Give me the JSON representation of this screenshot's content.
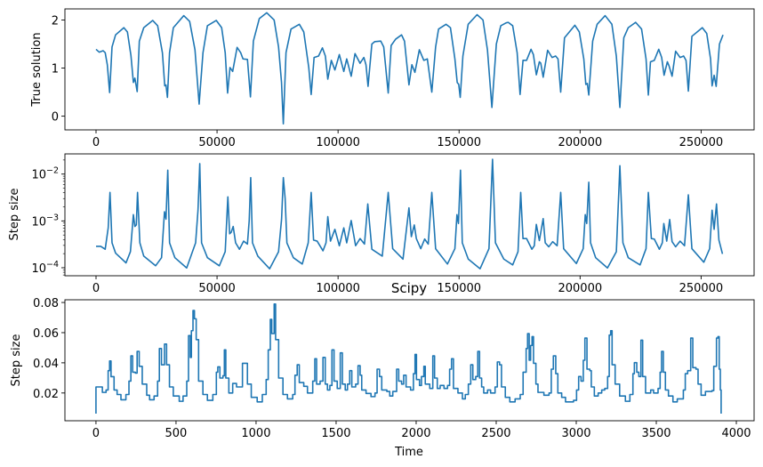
{
  "chart_data": [
    {
      "type": "line",
      "title": "",
      "xlabel": "",
      "ylabel": "True solution",
      "xlim": [
        -12856,
        271900
      ],
      "ylim": [
        -0.285,
        2.23
      ],
      "yscale": "linear",
      "grid": false,
      "color": "#1f77b4",
      "xticks": [
        0,
        50000,
        100000,
        150000,
        200000,
        250000
      ],
      "xtick_labels": [
        "0",
        "50000",
        "100000",
        "150000",
        "200000",
        "250000"
      ],
      "yticks": [
        0,
        1,
        2
      ],
      "ytick_labels": [
        "0",
        "1",
        "2"
      ],
      "x": [
        0,
        1350,
        2940,
        3790,
        4660,
        5620,
        6610,
        8080,
        11500,
        12970,
        14430,
        15430,
        16050,
        17000,
        17890,
        19720,
        23400,
        25460,
        27420,
        28400,
        28900,
        29500,
        30370,
        31950,
        36250,
        38680,
        40880,
        42600,
        44190,
        46020,
        49690,
        51900,
        53370,
        54360,
        55350,
        56450,
        58290,
        59760,
        60730,
        62560,
        63800,
        65010,
        67470,
        70520,
        73580,
        75410,
        76640,
        77380,
        78490,
        80560,
        84000,
        85840,
        87900,
        88890,
        90100,
        91940,
        93530,
        94760,
        95750,
        97220,
        98690,
        100530,
        102360,
        103580,
        105420,
        107010,
        109090,
        110670,
        111530,
        112390,
        113970,
        115190,
        117650,
        118860,
        120730,
        121940,
        123780,
        126240,
        127450,
        129290,
        130510,
        131750,
        133590,
        135420,
        136890,
        138730,
        140310,
        141520,
        144600,
        146430,
        148270,
        149230,
        149860,
        150480,
        151580,
        153760,
        157430,
        159880,
        161720,
        163560,
        165400,
        167240,
        169440,
        170310,
        172150,
        173990,
        175200,
        176420,
        177890,
        179730,
        180710,
        181930,
        183170,
        183760,
        184750,
        186590,
        188420,
        189890,
        190880,
        191980,
        193560,
        197850,
        199690,
        201530,
        202370,
        203000,
        203590,
        205200,
        207040,
        210350,
        213140,
        214970,
        216440,
        218060,
        219900,
        222950,
        225410,
        227250,
        228200,
        229080,
        230660,
        232490,
        233710,
        234700,
        236060,
        236790,
        238000,
        239470,
        241310,
        242780,
        243770,
        244730,
        246200,
        250500,
        252330,
        253910,
        254540,
        255380,
        256230,
        257590,
        259060
      ],
      "y": [
        1.39,
        1.33,
        1.36,
        1.32,
        1.07,
        0.49,
        1.44,
        1.69,
        1.84,
        1.75,
        1.26,
        0.7,
        0.79,
        0.51,
        1.56,
        1.84,
        1.99,
        1.88,
        1.32,
        0.63,
        0.65,
        0.39,
        1.32,
        1.84,
        2.09,
        1.97,
        1.38,
        0.25,
        1.32,
        1.88,
        1.99,
        1.84,
        1.32,
        0.48,
        1.01,
        0.93,
        1.43,
        1.32,
        1.19,
        1.18,
        0.4,
        1.56,
        2.03,
        2.15,
        2.0,
        1.44,
        0.7,
        -0.16,
        1.32,
        1.81,
        1.91,
        1.75,
        1.01,
        0.45,
        1.22,
        1.25,
        1.42,
        1.25,
        0.77,
        1.16,
        0.96,
        1.28,
        0.93,
        1.19,
        0.83,
        1.3,
        1.1,
        1.22,
        1.07,
        0.62,
        1.5,
        1.55,
        1.56,
        1.44,
        0.48,
        1.47,
        1.6,
        1.69,
        1.56,
        0.65,
        1.07,
        0.91,
        1.38,
        1.16,
        1.19,
        0.5,
        1.44,
        1.81,
        1.91,
        1.84,
        1.19,
        0.7,
        0.66,
        0.39,
        1.25,
        1.91,
        2.11,
        2.0,
        1.38,
        0.18,
        1.5,
        1.88,
        1.94,
        1.95,
        1.88,
        1.32,
        0.45,
        1.16,
        1.16,
        1.39,
        1.28,
        0.86,
        1.13,
        1.1,
        0.81,
        1.37,
        1.22,
        1.25,
        1.19,
        0.5,
        1.63,
        1.89,
        1.75,
        1.19,
        0.66,
        0.68,
        0.44,
        1.56,
        1.91,
        2.09,
        1.91,
        1.25,
        0.18,
        1.63,
        1.84,
        1.95,
        1.81,
        1.19,
        0.44,
        1.13,
        1.16,
        1.39,
        1.22,
        0.85,
        1.13,
        1.04,
        0.83,
        1.35,
        1.22,
        1.25,
        1.16,
        0.52,
        1.66,
        1.84,
        1.72,
        1.19,
        0.63,
        0.85,
        0.62,
        1.5,
        1.69
      ]
    },
    {
      "type": "line",
      "title": "",
      "xlabel": "",
      "ylabel": "Step size",
      "xlim": [
        -12856,
        271900
      ],
      "ylim": [
        6.74e-05,
        0.027
      ],
      "yscale": "log",
      "grid": false,
      "color": "#1f77b4",
      "xticks": [
        0,
        50000,
        100000,
        150000,
        200000,
        250000
      ],
      "xtick_labels": [
        "0",
        "50000",
        "100000",
        "150000",
        "200000",
        "250000"
      ],
      "yticks": [
        0.0001,
        0.001,
        0.01
      ],
      "ytick_labels": [
        {
          "base": "10",
          "exp": "−4"
        },
        {
          "base": "10",
          "exp": "−3"
        },
        {
          "base": "10",
          "exp": "−2"
        }
      ],
      "x": [
        0,
        1950,
        3780,
        5030,
        5770,
        6610,
        8080,
        12380,
        14210,
        15430,
        16050,
        16640,
        17150,
        18110,
        19720,
        24610,
        27070,
        28280,
        28910,
        29640,
        30380,
        32580,
        37460,
        41140,
        42130,
        42860,
        43600,
        46020,
        50940,
        53370,
        54470,
        55210,
        55830,
        56670,
        57670,
        59250,
        60970,
        62550,
        63290,
        63910,
        64650,
        66850,
        71730,
        75410,
        76660,
        77390,
        78130,
        78860,
        81540,
        85210,
        87670,
        88890,
        89880,
        91350,
        93770,
        95020,
        95760,
        96860,
        98690,
        100530,
        102360,
        103580,
        105420,
        107250,
        109090,
        110920,
        112280,
        113970,
        118270,
        120730,
        122570,
        126830,
        129290,
        130280,
        131490,
        132340,
        134170,
        135790,
        137260,
        138730,
        140310,
        145190,
        148270,
        149120,
        149750,
        150590,
        151330,
        153790,
        158670,
        162350,
        163820,
        165030,
        168480,
        172150,
        174350,
        175460,
        176410,
        177880,
        180090,
        181080,
        181920,
        183170,
        184750,
        185600,
        187070,
        188680,
        190520,
        191990,
        193200,
        198450,
        201280,
        202130,
        202750,
        203590,
        204330,
        206420,
        211310,
        214980,
        216440,
        217700,
        219900,
        224780,
        227250,
        228200,
        229450,
        230660,
        232760,
        233970,
        234590,
        235800,
        237020,
        238010,
        239480,
        241310,
        243150,
        244730,
        246200,
        251120,
        253540,
        254540,
        255380,
        256370,
        257360,
        258830
      ],
      "y": [
        0.000286,
        0.000286,
        0.000248,
        0.00071,
        0.00406,
        0.00034,
        0.000205,
        0.000127,
        0.00022,
        0.00136,
        0.00076,
        0.00082,
        0.00406,
        0.00034,
        0.000177,
        0.00011,
        0.000164,
        0.00157,
        0.00109,
        0.0121,
        0.00034,
        0.000164,
        9.9e-05,
        0.00034,
        0.00169,
        0.0167,
        0.00034,
        0.000164,
        0.00011,
        0.00022,
        0.00327,
        0.00053,
        0.00057,
        0.00076,
        0.00034,
        0.000248,
        0.00037,
        0.00032,
        0.00102,
        0.0084,
        0.00034,
        0.000177,
        9.5e-05,
        0.00022,
        0.00109,
        0.0084,
        0.00303,
        0.00034,
        0.000164,
        0.00012,
        0.00034,
        0.00406,
        0.00039,
        0.00037,
        0.00023,
        0.00034,
        0.00123,
        0.00037,
        0.00066,
        0.000295,
        0.00071,
        0.00034,
        0.00102,
        0.000295,
        0.00042,
        0.00032,
        0.0023,
        0.000248,
        0.000177,
        0.00406,
        0.000255,
        0.000153,
        0.0019,
        0.00046,
        0.00082,
        0.00042,
        0.000255,
        0.00041,
        0.00032,
        0.00406,
        0.000255,
        0.00012,
        0.000255,
        0.00136,
        0.00088,
        0.0121,
        0.00034,
        0.000153,
        9.5e-05,
        0.000255,
        0.0207,
        0.00034,
        0.000153,
        0.000115,
        0.00022,
        0.00406,
        0.00042,
        0.00042,
        0.000248,
        0.000295,
        0.00084,
        0.00038,
        0.00112,
        0.00034,
        0.00028,
        0.00036,
        0.000295,
        0.00406,
        0.000255,
        0.000123,
        0.000255,
        0.00136,
        0.00088,
        0.0067,
        0.00034,
        0.000164,
        9.9e-05,
        0.00022,
        0.0151,
        0.00034,
        0.000164,
        0.000115,
        0.000255,
        0.00406,
        0.00042,
        0.00041,
        0.000248,
        0.00034,
        0.00088,
        0.00037,
        0.00107,
        0.00036,
        0.00028,
        0.00037,
        0.000295,
        0.0036,
        0.000255,
        0.000131,
        0.000255,
        0.00169,
        0.00066,
        0.0023,
        0.00039,
        0.000197
      ]
    },
    {
      "type": "line",
      "drawstyle": "steps",
      "title": "Scipy",
      "xlabel": "Time",
      "ylabel": "Step size",
      "xlim": [
        -194,
        4111
      ],
      "ylim": [
        0.0016,
        0.0818
      ],
      "yscale": "linear",
      "grid": false,
      "color": "#1f77b4",
      "xticks": [
        0,
        500,
        1000,
        1500,
        2000,
        2500,
        3000,
        3500,
        4000
      ],
      "xtick_labels": [
        "0",
        "500",
        "1000",
        "1500",
        "2000",
        "2500",
        "3000",
        "3500",
        "4000"
      ],
      "yticks": [
        0.02,
        0.04,
        0.06,
        0.08
      ],
      "ytick_labels": [
        "0.02",
        "0.04",
        "0.06",
        "0.08"
      ],
      "x": [
        0,
        0,
        30,
        40,
        63,
        76,
        85,
        94,
        113,
        132,
        156,
        187,
        206,
        218,
        229,
        246,
        257,
        270,
        289,
        317,
        335,
        363,
        385,
        396,
        409,
        428,
        441,
        459,
        483,
        520,
        544,
        567,
        578,
        589,
        596,
        606,
        615,
        626,
        641,
        668,
        696,
        730,
        752,
        761,
        774,
        793,
        802,
        811,
        830,
        854,
        878,
        900,
        915,
        933,
        946,
        970,
        1007,
        1039,
        1063,
        1076,
        1089,
        1098,
        1113,
        1122,
        1141,
        1168,
        1196,
        1229,
        1243,
        1257,
        1270,
        1298,
        1321,
        1344,
        1354,
        1367,
        1378,
        1400,
        1418,
        1432,
        1446,
        1461,
        1474,
        1487,
        1507,
        1526,
        1539,
        1557,
        1571,
        1585,
        1598,
        1622,
        1637,
        1650,
        1660,
        1687,
        1718,
        1743,
        1756,
        1771,
        1785,
        1817,
        1835,
        1854,
        1878,
        1891,
        1909,
        1922,
        1937,
        1965,
        1983,
        1993,
        2002,
        2021,
        2033,
        2048,
        2057,
        2085,
        2104,
        2115,
        2132,
        2150,
        2174,
        2196,
        2209,
        2221,
        2233,
        2261,
        2289,
        2307,
        2326,
        2341,
        2354,
        2372,
        2385,
        2396,
        2409,
        2422,
        2446,
        2465,
        2493,
        2507,
        2521,
        2533,
        2557,
        2585,
        2618,
        2650,
        2668,
        2687,
        2696,
        2706,
        2715,
        2724,
        2733,
        2748,
        2761,
        2798,
        2830,
        2844,
        2857,
        2872,
        2885,
        2909,
        2933,
        2983,
        3002,
        3015,
        3030,
        3044,
        3054,
        3067,
        3085,
        3094,
        3113,
        3137,
        3159,
        3178,
        3196,
        3206,
        3215,
        3224,
        3243,
        3271,
        3307,
        3335,
        3354,
        3363,
        3378,
        3391,
        3404,
        3415,
        3433,
        3465,
        3483,
        3511,
        3524,
        3533,
        3544,
        3557,
        3576,
        3604,
        3631,
        3669,
        3681,
        3696,
        3715,
        3728,
        3748,
        3761,
        3780,
        3807,
        3848,
        3859,
        3876,
        3885,
        3893,
        3900,
        3905
      ],
      "y": [
        0.0063,
        0.024,
        0.024,
        0.0204,
        0.022,
        0.0348,
        0.0412,
        0.0308,
        0.022,
        0.019,
        0.0155,
        0.019,
        0.0279,
        0.0446,
        0.0338,
        0.0332,
        0.0476,
        0.0377,
        0.0259,
        0.0185,
        0.0155,
        0.018,
        0.0279,
        0.0495,
        0.0387,
        0.0524,
        0.0387,
        0.024,
        0.018,
        0.0145,
        0.018,
        0.0279,
        0.058,
        0.0436,
        0.0613,
        0.0747,
        0.0692,
        0.0554,
        0.0279,
        0.019,
        0.0151,
        0.019,
        0.0338,
        0.0373,
        0.0299,
        0.0314,
        0.0486,
        0.0299,
        0.02,
        0.0263,
        0.024,
        0.024,
        0.0397,
        0.0397,
        0.0259,
        0.0171,
        0.0141,
        0.019,
        0.0289,
        0.0486,
        0.0688,
        0.0594,
        0.079,
        0.0554,
        0.0299,
        0.019,
        0.0161,
        0.019,
        0.0318,
        0.0387,
        0.0269,
        0.0244,
        0.02,
        0.02,
        0.0279,
        0.0427,
        0.0259,
        0.0279,
        0.0436,
        0.0259,
        0.022,
        0.025,
        0.0486,
        0.0279,
        0.023,
        0.0466,
        0.0259,
        0.022,
        0.0259,
        0.0348,
        0.024,
        0.0259,
        0.0381,
        0.0318,
        0.022,
        0.0197,
        0.0176,
        0.02,
        0.0358,
        0.0309,
        0.022,
        0.021,
        0.018,
        0.021,
        0.0358,
        0.0279,
        0.0259,
        0.0318,
        0.024,
        0.022,
        0.0328,
        0.0456,
        0.0289,
        0.025,
        0.0309,
        0.0377,
        0.0259,
        0.023,
        0.0446,
        0.0299,
        0.023,
        0.025,
        0.023,
        0.025,
        0.0358,
        0.0427,
        0.023,
        0.02,
        0.0161,
        0.019,
        0.0259,
        0.0387,
        0.0289,
        0.0309,
        0.0476,
        0.0299,
        0.024,
        0.02,
        0.022,
        0.02,
        0.024,
        0.0406,
        0.0387,
        0.024,
        0.0171,
        0.0141,
        0.0161,
        0.019,
        0.0338,
        0.0495,
        0.0594,
        0.0417,
        0.0515,
        0.0574,
        0.0397,
        0.0259,
        0.0204,
        0.0185,
        0.02,
        0.0358,
        0.0446,
        0.0328,
        0.02,
        0.0171,
        0.0141,
        0.0151,
        0.022,
        0.0309,
        0.0279,
        0.0417,
        0.0564,
        0.0358,
        0.0348,
        0.024,
        0.018,
        0.02,
        0.022,
        0.023,
        0.0309,
        0.0584,
        0.0613,
        0.0387,
        0.0259,
        0.018,
        0.0145,
        0.019,
        0.0328,
        0.0401,
        0.0338,
        0.0309,
        0.055,
        0.0309,
        0.02,
        0.022,
        0.02,
        0.023,
        0.0338,
        0.0476,
        0.0338,
        0.022,
        0.018,
        0.0141,
        0.0161,
        0.022,
        0.0328,
        0.0348,
        0.0564,
        0.0368,
        0.0358,
        0.0259,
        0.0185,
        0.021,
        0.0216,
        0.0377,
        0.0564,
        0.0574,
        0.0358,
        0.022,
        0.0063
      ]
    }
  ]
}
